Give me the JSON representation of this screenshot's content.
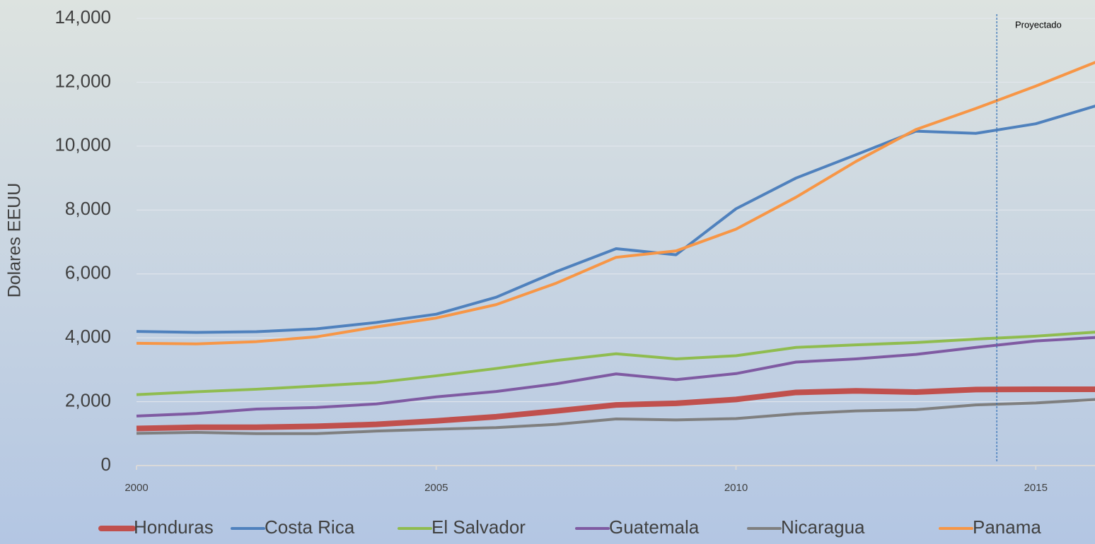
{
  "chart_data": {
    "type": "line",
    "y_axis_label": "Dolares EEUU",
    "annotation": "Proyectado",
    "projection_line_x": 2014.35,
    "x": [
      2000,
      2001,
      2002,
      2003,
      2004,
      2005,
      2006,
      2007,
      2008,
      2009,
      2010,
      2011,
      2012,
      2013,
      2014,
      2015,
      2016
    ],
    "xlim": [
      2000,
      2016
    ],
    "xticks": [
      2000,
      2005,
      2010,
      2015
    ],
    "ylim": [
      0,
      14000
    ],
    "yticks": [
      0,
      {
        "value": 2000,
        "label": "2,000"
      },
      {
        "value": 4000,
        "label": "4,000"
      },
      {
        "value": 6000,
        "label": "6,000"
      },
      {
        "value": 8000,
        "label": "8,000"
      },
      {
        "value": 10000,
        "label": "10,000"
      },
      {
        "value": 12000,
        "label": "12,000"
      },
      {
        "value": 14000,
        "label": "14,000"
      }
    ],
    "grid": true,
    "legend": "bottom",
    "series": [
      {
        "name": "Honduras",
        "color": "#c0504d",
        "width": 8,
        "values": [
          1160,
          1200,
          1200,
          1230,
          1290,
          1400,
          1530,
          1710,
          1900,
          1950,
          2070,
          2290,
          2340,
          2300,
          2380,
          2390,
          2390
        ]
      },
      {
        "name": "Costa Rica",
        "color": "#4f81bd",
        "width": 4,
        "values": [
          4200,
          4170,
          4190,
          4280,
          4480,
          4740,
          5270,
          6070,
          6790,
          6600,
          8040,
          9000,
          9730,
          10470,
          10400,
          10700,
          11260
        ]
      },
      {
        "name": "El Salvador",
        "color": "#8fbc4f",
        "width": 4,
        "values": [
          2220,
          2310,
          2390,
          2490,
          2600,
          2810,
          3040,
          3290,
          3500,
          3340,
          3440,
          3700,
          3780,
          3850,
          3960,
          4050,
          4180
        ]
      },
      {
        "name": "Guatemala",
        "color": "#7f5aa2",
        "width": 4,
        "values": [
          1550,
          1630,
          1770,
          1820,
          1930,
          2150,
          2320,
          2560,
          2870,
          2690,
          2880,
          3240,
          3340,
          3480,
          3700,
          3900,
          4010
        ]
      },
      {
        "name": "Nicaragua",
        "color": "#7f7f7f",
        "width": 4,
        "values": [
          1010,
          1040,
          1000,
          1000,
          1080,
          1140,
          1190,
          1290,
          1460,
          1430,
          1470,
          1620,
          1710,
          1750,
          1900,
          1960,
          2070
        ]
      },
      {
        "name": "Panama",
        "color": "#f79646",
        "width": 4,
        "values": [
          3830,
          3810,
          3880,
          4030,
          4340,
          4620,
          5040,
          5710,
          6520,
          6720,
          7400,
          8400,
          9520,
          10520,
          11180,
          11880,
          12630
        ]
      }
    ]
  }
}
